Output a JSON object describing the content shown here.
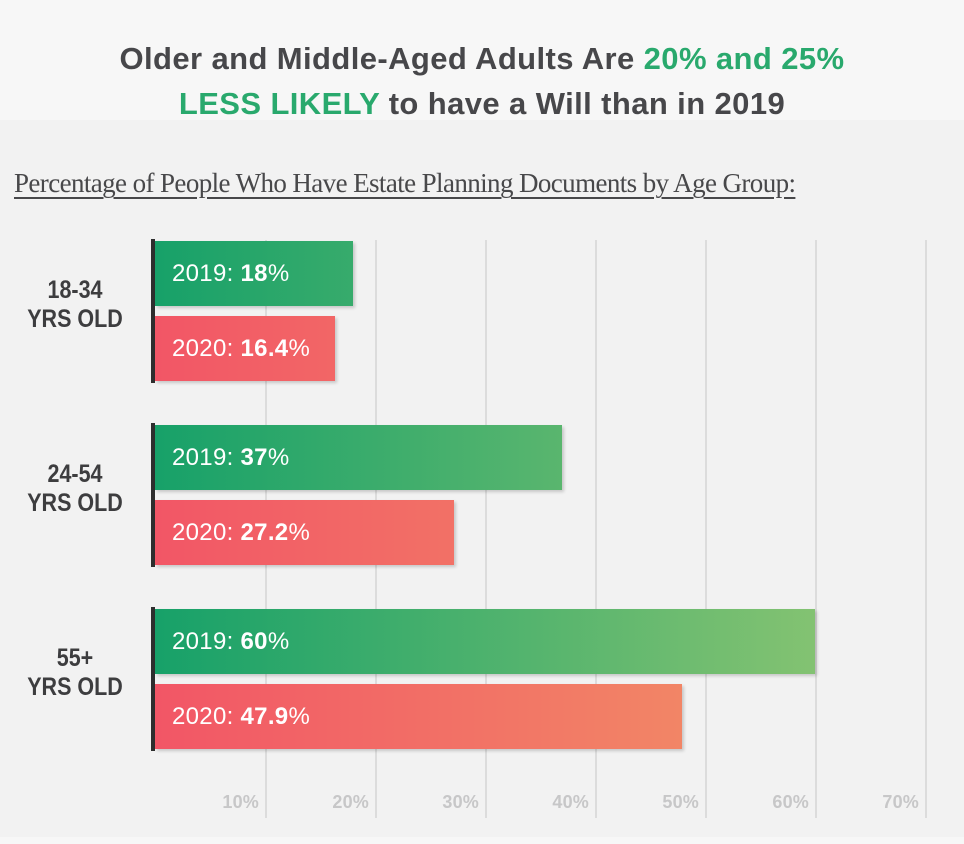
{
  "header": {
    "title": {
      "seg1_dark": "Older and Middle-Aged Adults Are ",
      "seg2_green": "20% and 25%",
      "seg3_green": "LESS LIKELY",
      "seg4_dark": " to have a Will than in 2019"
    },
    "subtitle": "Percentage of People Who Have Estate Planning Documents by Age Group:"
  },
  "colors": {
    "accent_green": "#29a96d",
    "title_dark": "#47474a",
    "page_background": "#f2f2f2",
    "header_background": "#f7f7f7",
    "gridline": "#dcdcdc",
    "axis_line": "#2e2e2e",
    "tick_label": "#c7c7c8",
    "bar_green_start": "#17a169",
    "bar_green_end": "#95c873",
    "bar_red_start": "#f25666",
    "bar_red_end": "#f29b66",
    "bar_text": "#ffffff"
  },
  "chart_data": {
    "type": "bar",
    "orientation": "horizontal",
    "title": "Percentage of People Who Have Estate Planning Documents by Age Group",
    "categories": [
      {
        "line1": "18-34",
        "line2": "YRS OLD"
      },
      {
        "line1": "24-54",
        "line2": "YRS OLD"
      },
      {
        "line1": "55+",
        "line2": "YRS OLD"
      }
    ],
    "series": [
      {
        "name": "2019",
        "values": [
          18,
          37,
          60
        ],
        "value_labels": [
          "18%",
          "37%",
          "60%"
        ],
        "color_start": "#17a169",
        "color_end": "#95c873"
      },
      {
        "name": "2020",
        "values": [
          16.4,
          27.2,
          47.9
        ],
        "value_labels": [
          "16.4%",
          "27.2%",
          "47.9%"
        ],
        "color_start": "#f25666",
        "color_end": "#f29b66"
      }
    ],
    "x_ticks": [
      "10%",
      "20%",
      "30%",
      "40%",
      "50%",
      "60%",
      "70%"
    ],
    "xlim": [
      0,
      70
    ],
    "grid": true,
    "legend_position": "none",
    "bar_label_format": "{series}: {value}%"
  }
}
